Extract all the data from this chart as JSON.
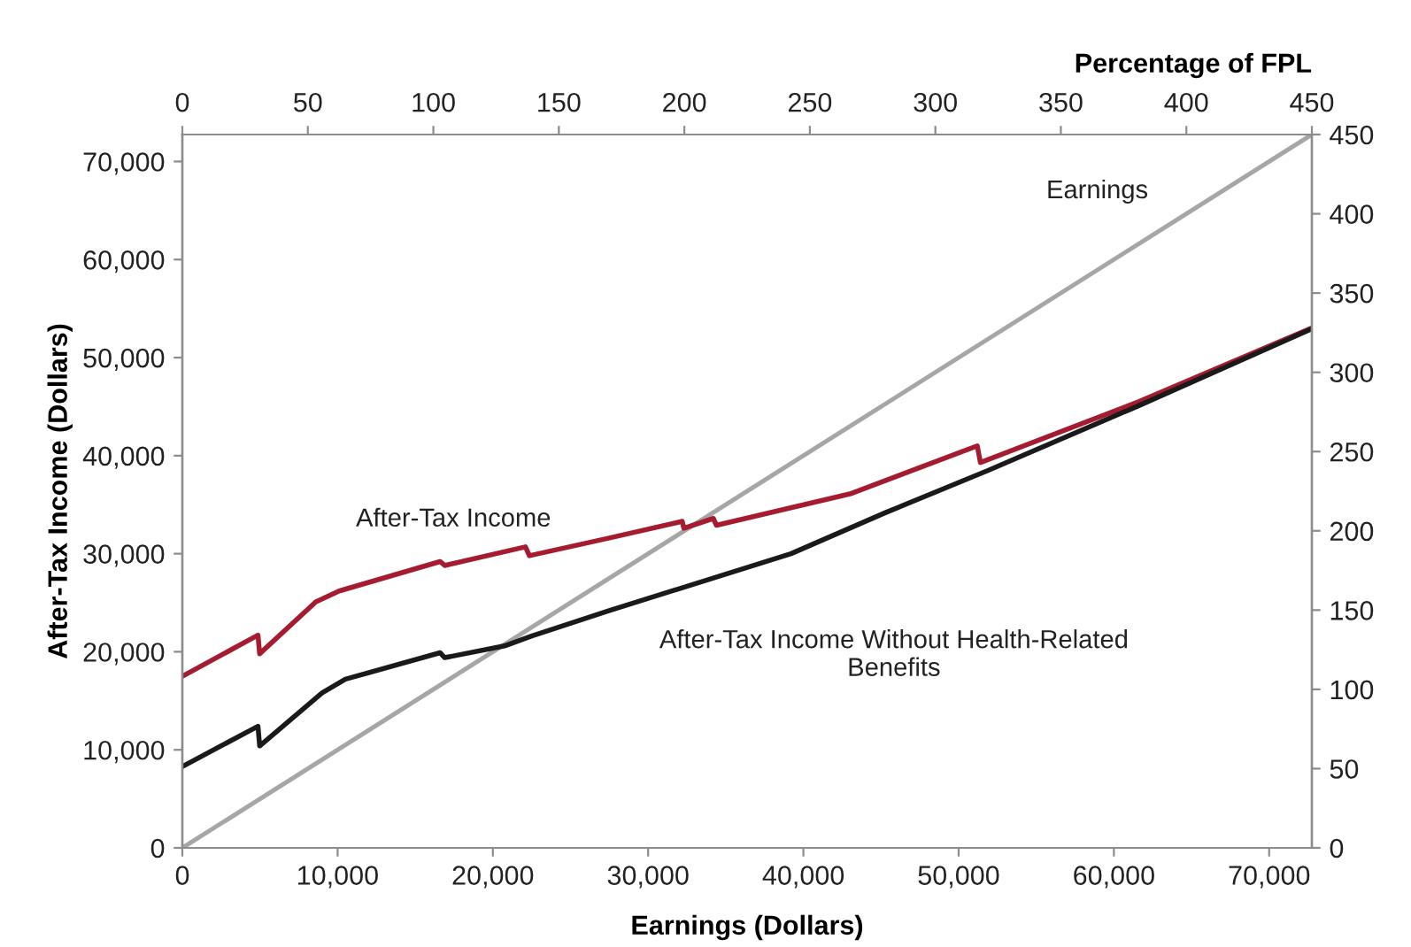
{
  "chart_data": {
    "type": "line",
    "xlabel": "Earnings (Dollars)",
    "ylabel": "After-Tax Income (Dollars)",
    "x2label": "Percentage of FPL",
    "xlim": [
      0,
      72750
    ],
    "ylim": [
      0,
      72750
    ],
    "x2lim": [
      0,
      450
    ],
    "y2lim": [
      0,
      450
    ],
    "xticks": [
      0,
      {
        "value": 10000,
        "label": "10,000"
      },
      {
        "value": 20000,
        "label": "20,000"
      },
      {
        "value": 30000,
        "label": "30,000"
      },
      {
        "value": 40000,
        "label": "40,000"
      },
      {
        "value": 50000,
        "label": "50,000"
      },
      {
        "value": 60000,
        "label": "60,000"
      },
      {
        "value": 70000,
        "label": "70,000"
      }
    ],
    "yticks": [
      0,
      {
        "value": 10000,
        "label": "10,000"
      },
      {
        "value": 20000,
        "label": "20,000"
      },
      {
        "value": 30000,
        "label": "30,000"
      },
      {
        "value": 40000,
        "label": "40,000"
      },
      {
        "value": 50000,
        "label": "50,000"
      },
      {
        "value": 60000,
        "label": "60,000"
      },
      {
        "value": 70000,
        "label": "70,000"
      }
    ],
    "x2ticks": [
      0,
      50,
      100,
      150,
      200,
      250,
      300,
      350,
      400,
      450
    ],
    "y2ticks": [
      0,
      50,
      100,
      150,
      200,
      250,
      300,
      350,
      400,
      450
    ],
    "grid": false,
    "legend": false,
    "marker": "none",
    "line_style": "solid",
    "series": [
      {
        "name": "Earnings",
        "color": "#a6a6a6",
        "x": [
          0,
          72700
        ],
        "values": [
          0,
          72700
        ]
      },
      {
        "name": "After-Tax Income",
        "color": "#a51c30",
        "x": [
          0,
          4870,
          4980,
          8600,
          10100,
          16600,
          16900,
          22100,
          22350,
          27500,
          32200,
          32300,
          34200,
          34400,
          43000,
          51200,
          51400,
          61600,
          72700
        ],
        "values": [
          17500,
          21700,
          19800,
          25100,
          26200,
          29200,
          28800,
          30700,
          29800,
          31600,
          33300,
          32600,
          33600,
          32900,
          36100,
          41000,
          39300,
          45500,
          53000
        ]
      },
      {
        "name": "After-Tax Income Without Health-Related Benefits",
        "color": "#1a1a1a",
        "x": [
          0,
          4870,
          4980,
          9000,
          10500,
          16600,
          16900,
          20750,
          22500,
          27500,
          39200,
          45300,
          51900,
          61600,
          72700
        ],
        "values": [
          8300,
          12400,
          10400,
          15800,
          17200,
          19900,
          19400,
          20600,
          21600,
          24200,
          30000,
          34200,
          38500,
          45100,
          52900
        ]
      }
    ]
  }
}
